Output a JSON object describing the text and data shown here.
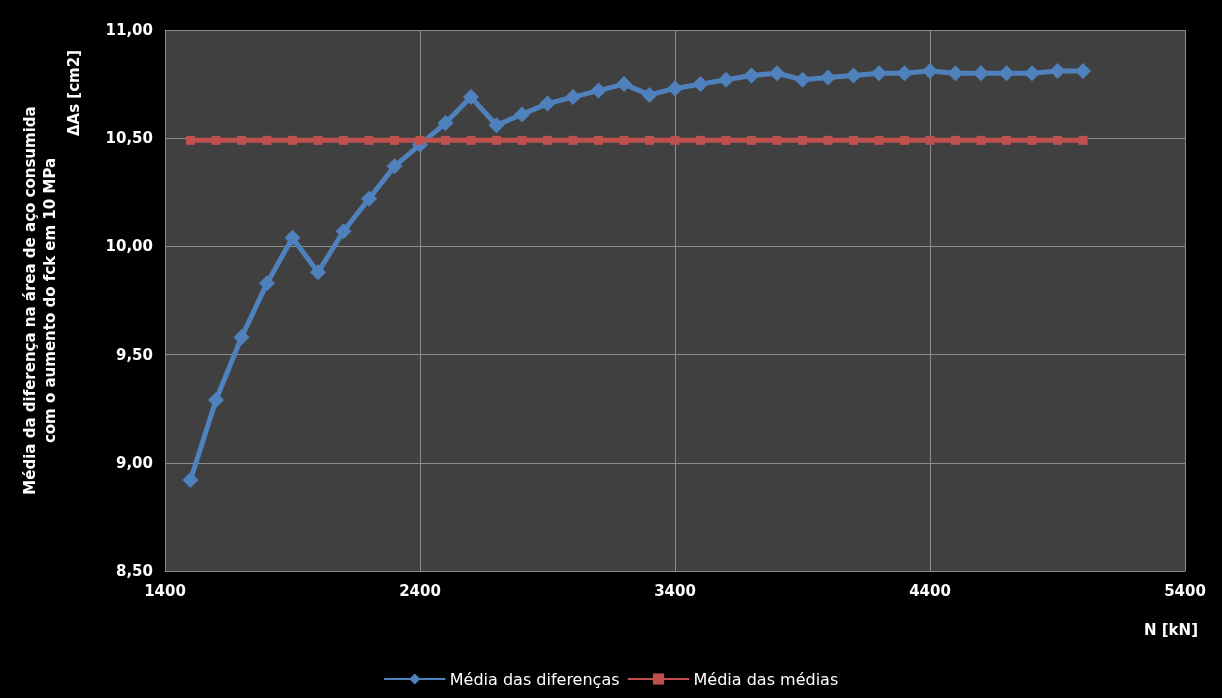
{
  "chart_data": {
    "type": "line",
    "xlabel": "N [kN]",
    "ylabel": "Média da diferença na área de aço consumida\ncom o aumento do fck em 10 MPa",
    "annotations": [
      "ΔAs [cm2]"
    ],
    "x": [
      1500,
      1600,
      1700,
      1800,
      1900,
      2000,
      2100,
      2200,
      2300,
      2400,
      2500,
      2600,
      2700,
      2800,
      2900,
      3000,
      3100,
      3200,
      3300,
      3400,
      3500,
      3600,
      3700,
      3800,
      3900,
      4000,
      4100,
      4200,
      4300,
      4400,
      4500,
      4600,
      4700,
      4800,
      4900,
      5000
    ],
    "series": [
      {
        "name": "Média das diferenças",
        "color": "#4f81bd",
        "marker": "diamond",
        "values": [
          8.92,
          9.29,
          9.58,
          9.83,
          10.04,
          9.88,
          10.07,
          10.22,
          10.37,
          10.47,
          10.57,
          10.69,
          10.56,
          10.61,
          10.66,
          10.69,
          10.72,
          10.75,
          10.7,
          10.73,
          10.75,
          10.77,
          10.79,
          10.8,
          10.77,
          10.78,
          10.79,
          10.8,
          10.8,
          10.81,
          10.8,
          10.8,
          10.8,
          10.8,
          10.81,
          10.81
        ]
      },
      {
        "name": "Média das médias",
        "color": "#c0504d",
        "marker": "square",
        "values": [
          10.49,
          10.49,
          10.49,
          10.49,
          10.49,
          10.49,
          10.49,
          10.49,
          10.49,
          10.49,
          10.49,
          10.49,
          10.49,
          10.49,
          10.49,
          10.49,
          10.49,
          10.49,
          10.49,
          10.49,
          10.49,
          10.49,
          10.49,
          10.49,
          10.49,
          10.49,
          10.49,
          10.49,
          10.49,
          10.49,
          10.49,
          10.49,
          10.49,
          10.49,
          10.49,
          10.49
        ]
      }
    ],
    "xlim": [
      1400,
      5400
    ],
    "xticks": [
      1400,
      2400,
      3400,
      4400,
      5400
    ],
    "ylim": [
      8.5,
      11
    ],
    "yticks": [
      {
        "value": 8.5,
        "label": "8,50"
      },
      {
        "value": 9,
        "label": "9,00"
      },
      {
        "value": 9.5,
        "label": "9,50"
      },
      {
        "value": 10,
        "label": "10,00"
      },
      {
        "value": 10.5,
        "label": "10,50"
      },
      {
        "value": 11,
        "label": "11,00"
      }
    ],
    "grid": true,
    "legend": "bottom",
    "line_style": "solid"
  }
}
